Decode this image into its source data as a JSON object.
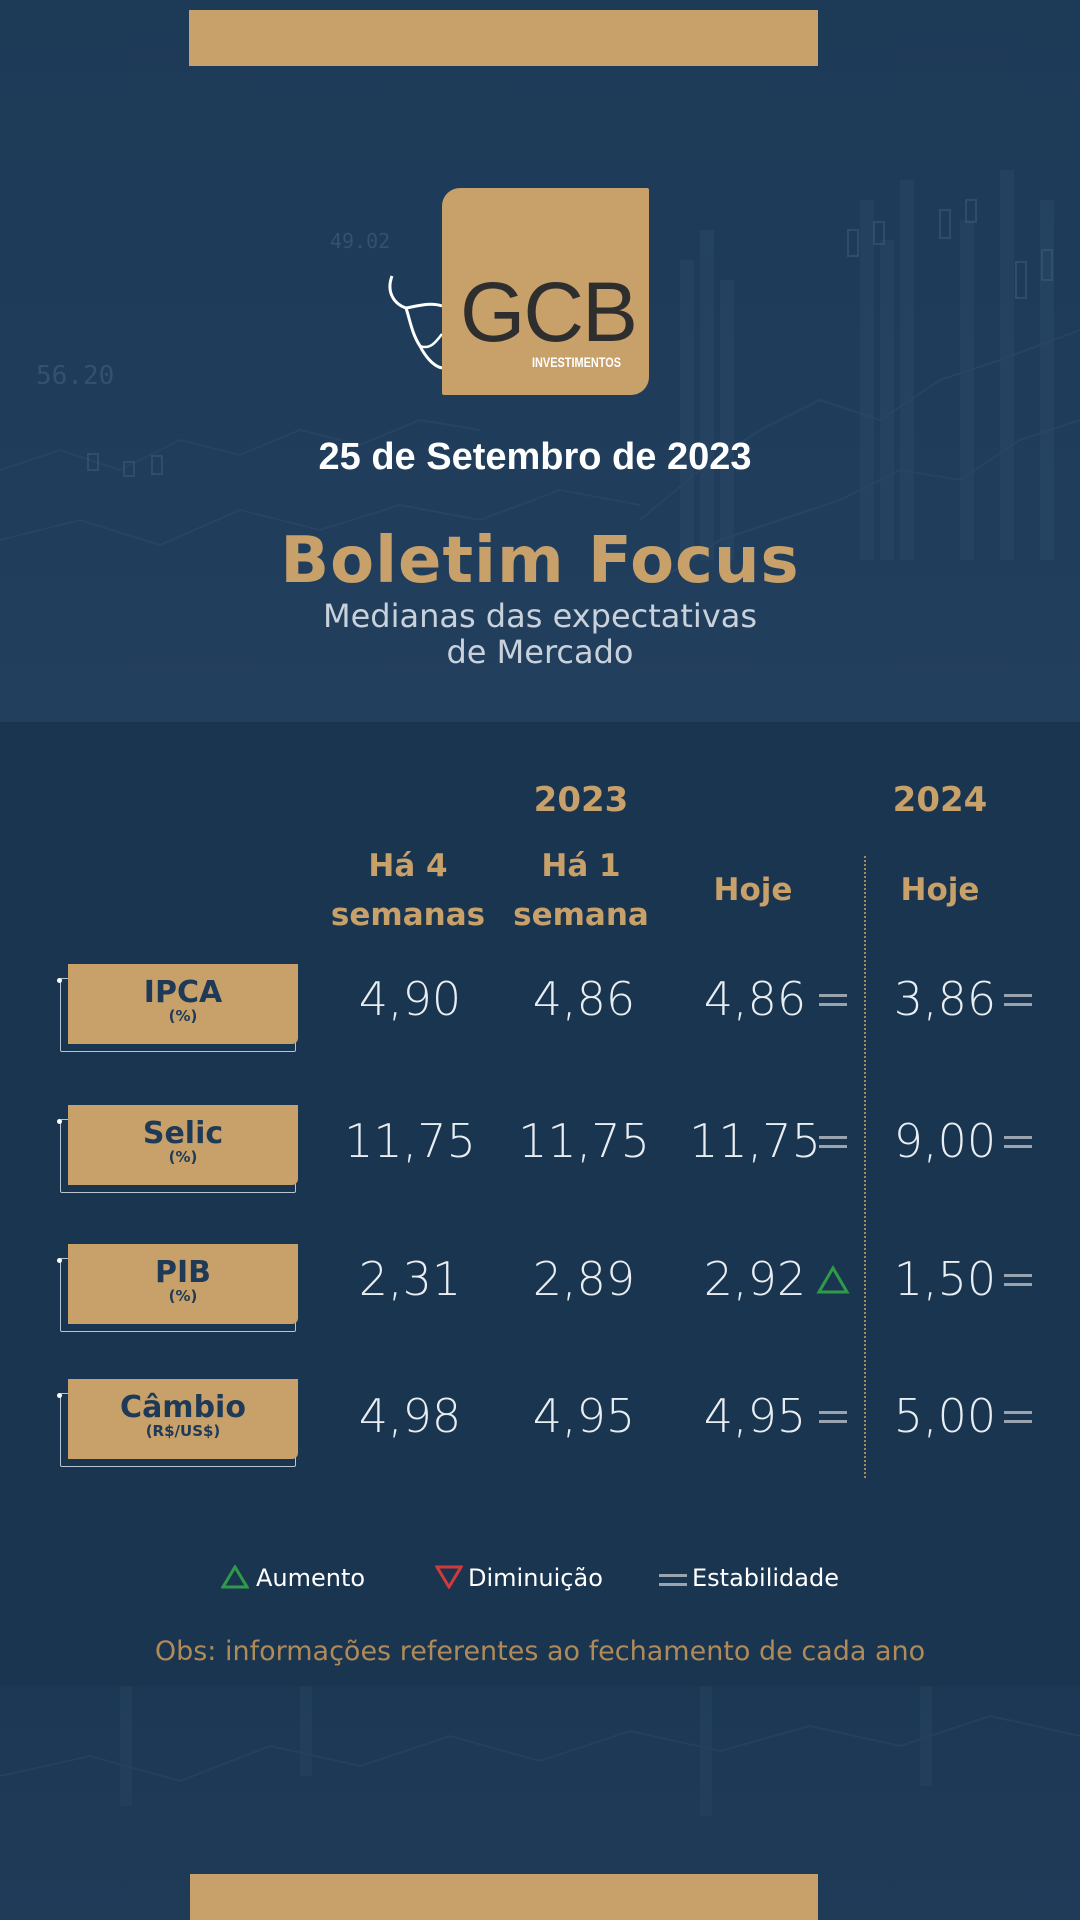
{
  "header": {
    "logo_text": "GCB",
    "logo_sub": "INVESTIMENTOS",
    "date": "25 de Setembro de 2023",
    "title": "Boletim Focus",
    "subtitle_line1": "Medianas das expectativas",
    "subtitle_line2": "de Mercado"
  },
  "table": {
    "year_2023": "2023",
    "year_2024": "2024",
    "col_4_weeks": [
      "Há 4",
      "semanas"
    ],
    "col_1_week": [
      "Há 1",
      "semana"
    ],
    "col_today_2023": "Hoje",
    "col_today_2024": "Hoje",
    "rows": [
      {
        "name": "IPCA",
        "unit": "(%)",
        "weeks4": "4,90",
        "week1": "4,86",
        "today": "4,86",
        "trend_2023": "stable",
        "y2024": "3,86",
        "trend_2024": "stable"
      },
      {
        "name": "Selic",
        "unit": "(%)",
        "weeks4": "11,75",
        "week1": "11,75",
        "today": "11,75",
        "trend_2023": "stable",
        "y2024": "9,00",
        "trend_2024": "stable"
      },
      {
        "name": "PIB",
        "unit": "(%)",
        "weeks4": "2,31",
        "week1": "2,89",
        "today": "2,92",
        "trend_2023": "increase",
        "y2024": "1,50",
        "trend_2024": "stable"
      },
      {
        "name": "Câmbio",
        "unit": "(R$/US$)",
        "weeks4": "4,98",
        "week1": "4,95",
        "today": "4,95",
        "trend_2023": "stable",
        "y2024": "5,00",
        "trend_2024": "stable"
      }
    ]
  },
  "legend": {
    "increase": "Aumento",
    "decrease": "Diminuição",
    "stable": "Estabilidade"
  },
  "footnote": "Obs: informações referentes ao fechamento de cada ano",
  "colors": {
    "background": "#1a3550",
    "accent_gold": "#c8a06a",
    "increase_green": "#2e9a4a",
    "decrease_red": "#d03a3a",
    "stable_gray": "#9aa4ae"
  },
  "icons": {
    "increase": "triangle-up-icon",
    "decrease": "triangle-down-icon",
    "stable": "equals-icon",
    "logo": "bull-icon"
  }
}
